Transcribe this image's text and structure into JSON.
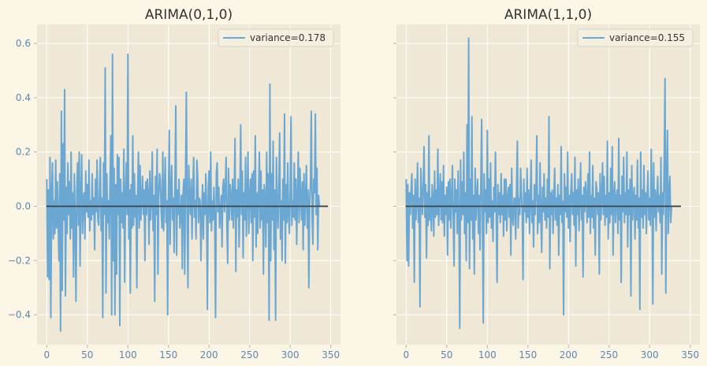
{
  "figure": {
    "background": "#fcf6e7",
    "axes_background": "#efe8d6",
    "grid_color": "#ffffff",
    "series_color": "#6ba7d3",
    "tick_color": "#5f86b0"
  },
  "chart_data": [
    {
      "type": "line",
      "title": "ARIMA(0,1,0)",
      "xlabel": "",
      "ylabel": "",
      "xlim": [
        -12,
        362
      ],
      "ylim": [
        -0.51,
        0.67
      ],
      "xticks": [
        0,
        50,
        100,
        150,
        200,
        250,
        300,
        350
      ],
      "xtick_labels": [
        "0",
        "50",
        "100",
        "150",
        "200",
        "250",
        "300",
        "350"
      ],
      "yticks": [
        0.6,
        0.4,
        0.2,
        0.0,
        -0.2,
        -0.4
      ],
      "ytick_labels": [
        "0.6",
        "0.4",
        "0.2",
        "0.0",
        "−0.2",
        "−0.4"
      ],
      "grid": true,
      "legend": "top-right",
      "series": [
        {
          "name": "variance=0.178",
          "x_start": 0,
          "x_step": 1,
          "y": [
            0.1,
            -0.26,
            0.06,
            -0.27,
            0.18,
            -0.41,
            0.05,
            0.16,
            -0.12,
            0.02,
            -0.1,
            0.17,
            -0.08,
            0.09,
            -0.05,
            -0.2,
            0.12,
            -0.46,
            0.35,
            -0.31,
            0.23,
            -0.05,
            0.43,
            -0.33,
            0.07,
            -0.1,
            0.16,
            -0.03,
            0.09,
            -0.12,
            0.2,
            -0.08,
            0.05,
            -0.26,
            0.12,
            -0.05,
            -0.35,
            0.06,
            0.16,
            -0.07,
            0.2,
            -0.22,
            0.03,
            0.19,
            -0.1,
            0.02,
            0.05,
            -0.12,
            0.13,
            -0.02,
            0.08,
            -0.04,
            0.17,
            -0.09,
            0.02,
            -0.05,
            0.12,
            -0.03,
            0.03,
            -0.16,
            0.1,
            -0.02,
            0.17,
            -0.05,
            -0.07,
            0.06,
            0.18,
            -0.09,
            0.03,
            -0.41,
            0.16,
            -0.03,
            0.51,
            -0.32,
            0.12,
            -0.06,
            0.02,
            -0.12,
            0.09,
            0.26,
            -0.4,
            0.56,
            -0.2,
            0.14,
            -0.4,
            0.08,
            -0.25,
            0.19,
            -0.03,
            0.18,
            -0.44,
            0.1,
            -0.06,
            0.05,
            -0.08,
            0.21,
            -0.28,
            0.04,
            0.16,
            -0.03,
            0.56,
            -0.12,
            0.06,
            -0.32,
            0.08,
            -0.08,
            0.26,
            -0.07,
            0.12,
            -0.04,
            0.04,
            -0.3,
            0.06,
            0.2,
            -0.08,
            0.15,
            -0.05,
            0.03,
            0.11,
            -0.03,
            0.06,
            -0.2,
            0.09,
            -0.03,
            0.1,
            0.05,
            -0.14,
            0.13,
            -0.05,
            0.02,
            0.2,
            -0.09,
            0.04,
            -0.35,
            0.11,
            -0.03,
            0.21,
            -0.25,
            0.04,
            0.12,
            0.1,
            -0.02,
            -0.08,
            0.2,
            -0.09,
            0.04,
            0.18,
            -0.06,
            0.02,
            -0.4,
            0.05,
            0.28,
            -0.14,
            0.06,
            0.15,
            -0.05,
            0.03,
            -0.17,
            0.08,
            0.37,
            -0.18,
            0.06,
            -0.03,
            0.1,
            -0.08,
            -0.03,
            0.04,
            -0.23,
            0.05,
            0.1,
            -0.25,
            0.09,
            0.42,
            -0.03,
            -0.3,
            0.15,
            0.04,
            -0.03,
            0.1,
            -0.12,
            0.05,
            0.18,
            -0.04,
            0.02,
            -0.12,
            0.17,
            0.11,
            -0.06,
            0.03,
            0.02,
            -0.2,
            -0.03,
            0.08,
            -0.12,
            0.05,
            -0.03,
            0.12,
            -0.02,
            -0.38,
            0.06,
            0.13,
            -0.06,
            0.2,
            -0.09,
            0.02,
            -0.05,
            0.07,
            -0.04,
            -0.41,
            0.12,
            0.16,
            -0.02,
            0.07,
            -0.08,
            -0.02,
            0.04,
            -0.15,
            0.07,
            0.1,
            -0.02,
            0.05,
            0.18,
            -0.07,
            -0.21,
            0.14,
            -0.05,
            0.08,
            0.04,
            -0.05,
            0.1,
            -0.08,
            0.04,
            0.25,
            -0.24,
            0.06,
            -0.04,
            0.1,
            -0.15,
            0.03,
            0.3,
            -0.03,
            0.13,
            -0.19,
            0.05,
            -0.05,
            0.18,
            -0.11,
            0.04,
            0.2,
            -0.1,
            0.03,
            0.1,
            -0.06,
            0.12,
            -0.2,
            0.13,
            -0.04,
            0.26,
            -0.15,
            0.05,
            -0.1,
            0.04,
            0.2,
            -0.08,
            0.13,
            -0.05,
            0.06,
            -0.25,
            0.08,
            0.03,
            -0.15,
            0.2,
            -0.06,
            0.12,
            -0.42,
            0.45,
            -0.2,
            0.12,
            -0.05,
            0.24,
            -0.16,
            0.06,
            -0.42,
            0.18,
            0.02,
            -0.08,
            0.06,
            0.27,
            -0.12,
            0.02,
            -0.2,
            0.1,
            -0.05,
            0.34,
            -0.21,
            0.08,
            -0.06,
            0.16,
            -0.03,
            -0.1,
            0.05,
            0.33,
            -0.07,
            0.02,
            -0.04,
            0.16,
            -0.05,
            0.1,
            -0.14,
            0.03,
            0.2,
            -0.06,
            0.14,
            0.04,
            -0.05,
            0.09,
            -0.16,
            0.12,
            -0.07,
            0.04,
            0.15,
            -0.08,
            0.06,
            -0.3,
            0.02,
            0.08,
            0.35,
            -0.04,
            -0.14,
            0.1,
            0.05,
            0.34,
            -0.03,
            0.14,
            -0.16,
            0.04,
            0.0,
            0.0,
            0.0,
            0.0,
            0.0,
            0.0,
            0.0,
            0.0,
            0.0,
            0.0,
            0.0
          ]
        }
      ]
    },
    {
      "type": "line",
      "title": "ARIMA(1,1,0)",
      "xlabel": "",
      "ylabel": "",
      "xlim": [
        -12,
        362
      ],
      "ylim": [
        -0.51,
        0.67
      ],
      "xticks": [
        0,
        50,
        100,
        150,
        200,
        250,
        300,
        350
      ],
      "xtick_labels": [
        "0",
        "50",
        "100",
        "150",
        "200",
        "250",
        "300",
        "350"
      ],
      "yticks": [
        0.6,
        0.4,
        0.2,
        0.0,
        -0.2,
        -0.4
      ],
      "ytick_labels": [
        "",
        "",
        "",
        "",
        "",
        ""
      ],
      "grid": true,
      "legend": "top-right",
      "series": [
        {
          "name": "variance=0.155",
          "x_start": 0,
          "x_step": 1,
          "y": [
            0.1,
            -0.2,
            0.08,
            -0.22,
            0.05,
            -0.03,
            0.06,
            0.12,
            -0.08,
            0.04,
            -0.28,
            0.1,
            -0.05,
            0.02,
            0.16,
            -0.06,
            0.03,
            -0.37,
            0.14,
            0.06,
            -0.03,
            0.07,
            0.22,
            -0.04,
            0.08,
            -0.19,
            0.05,
            -0.07,
            0.26,
            -0.05,
            0.03,
            -0.09,
            0.08,
            0.02,
            -0.11,
            0.13,
            -0.04,
            0.06,
            -0.03,
            0.21,
            -0.07,
            0.03,
            0.12,
            -0.05,
            0.09,
            -0.06,
            0.15,
            -0.11,
            0.04,
            -0.03,
            0.07,
            -0.18,
            0.09,
            -0.05,
            0.1,
            -0.08,
            0.03,
            0.15,
            -0.05,
            -0.22,
            0.1,
            -0.02,
            0.06,
            -0.1,
            0.13,
            -0.04,
            -0.45,
            0.17,
            -0.05,
            0.09,
            -0.03,
            0.2,
            -0.1,
            0.05,
            -0.2,
            0.3,
            -0.06,
            0.62,
            -0.23,
            0.1,
            -0.05,
            0.33,
            -0.12,
            0.04,
            -0.25,
            0.14,
            -0.05,
            0.03,
            0.1,
            -0.1,
            0.04,
            -0.16,
            0.08,
            0.32,
            -0.05,
            -0.43,
            0.12,
            -0.02,
            0.06,
            -0.1,
            0.28,
            -0.06,
            0.1,
            -0.04,
            0.16,
            -0.08,
            0.02,
            -0.13,
            0.07,
            -0.02,
            0.2,
            -0.04,
            -0.28,
            0.08,
            -0.03,
            0.05,
            -0.06,
            0.12,
            -0.03,
            0.04,
            -0.11,
            0.1,
            -0.05,
            0.1,
            -0.09,
            0.03,
            0.07,
            -0.04,
            0.08,
            -0.18,
            0.14,
            -0.04,
            -0.07,
            0.03,
            0.03,
            -0.12,
            0.06,
            0.24,
            -0.08,
            0.03,
            -0.03,
            0.14,
            0.05,
            -0.02,
            -0.27,
            0.1,
            -0.02,
            0.05,
            -0.06,
            0.14,
            -0.04,
            0.06,
            -0.1,
            0.03,
            0.17,
            -0.06,
            0.02,
            -0.15,
            0.08,
            -0.03,
            0.06,
            0.26,
            -0.1,
            0.04,
            -0.06,
            0.16,
            -0.03,
            -0.17,
            0.07,
            -0.02,
            0.12,
            -0.05,
            0.03,
            -0.08,
            0.1,
            -0.04,
            0.33,
            -0.23,
            0.05,
            -0.03,
            0.06,
            -0.1,
            0.02,
            0.14,
            -0.05,
            0.03,
            -0.07,
            0.08,
            -0.18,
            0.04,
            -0.03,
            0.22,
            -0.06,
            0.02,
            -0.4,
            0.12,
            -0.02,
            0.07,
            -0.04,
            0.2,
            -0.08,
            0.04,
            -0.13,
            0.06,
            0.12,
            -0.03,
            0.05,
            -0.07,
            0.18,
            -0.22,
            0.06,
            -0.03,
            0.1,
            -0.09,
            0.03,
            0.16,
            -0.05,
            0.04,
            -0.26,
            0.07,
            -0.02,
            0.09,
            0.03,
            -0.06,
            0.12,
            -0.04,
            0.2,
            -0.1,
            0.04,
            -0.04,
            0.15,
            -0.08,
            0.03,
            -0.18,
            0.09,
            0.06,
            -0.03,
            0.05,
            -0.25,
            0.12,
            -0.05,
            0.03,
            0.16,
            -0.03,
            0.11,
            -0.07,
            0.04,
            -0.04,
            0.24,
            -0.12,
            0.05,
            -0.06,
            0.14,
            -0.03,
            0.22,
            -0.18,
            0.04,
            0.09,
            -0.06,
            0.03,
            0.06,
            -0.1,
            0.25,
            -0.05,
            0.04,
            -0.28,
            0.11,
            -0.02,
            0.18,
            -0.06,
            0.05,
            -0.03,
            0.2,
            -0.15,
            0.06,
            -0.03,
            0.1,
            -0.33,
            0.15,
            -0.05,
            0.03,
            0.07,
            -0.12,
            0.04,
            -0.05,
            0.17,
            -0.08,
            0.03,
            -0.38,
            0.2,
            -0.04,
            0.06,
            -0.08,
            0.15,
            -0.03,
            0.05,
            -0.1,
            0.04,
            0.13,
            -0.05,
            0.03,
            -0.07,
            0.21,
            0.05,
            -0.36,
            0.16,
            -0.04,
            0.06,
            -0.09,
            0.03,
            0.11,
            -0.02,
            0.04,
            -0.06,
            0.18,
            -0.25,
            0.05,
            -0.03,
            0.16,
            0.47,
            -0.32,
            0.09,
            0.28,
            -0.1,
            0.04,
            0.11,
            -0.06,
            0.0,
            0.0,
            0.0,
            0.0,
            0.0,
            0.0,
            0.0,
            0.0,
            0.0,
            0.0,
            0.0,
            0.0
          ]
        }
      ]
    }
  ]
}
